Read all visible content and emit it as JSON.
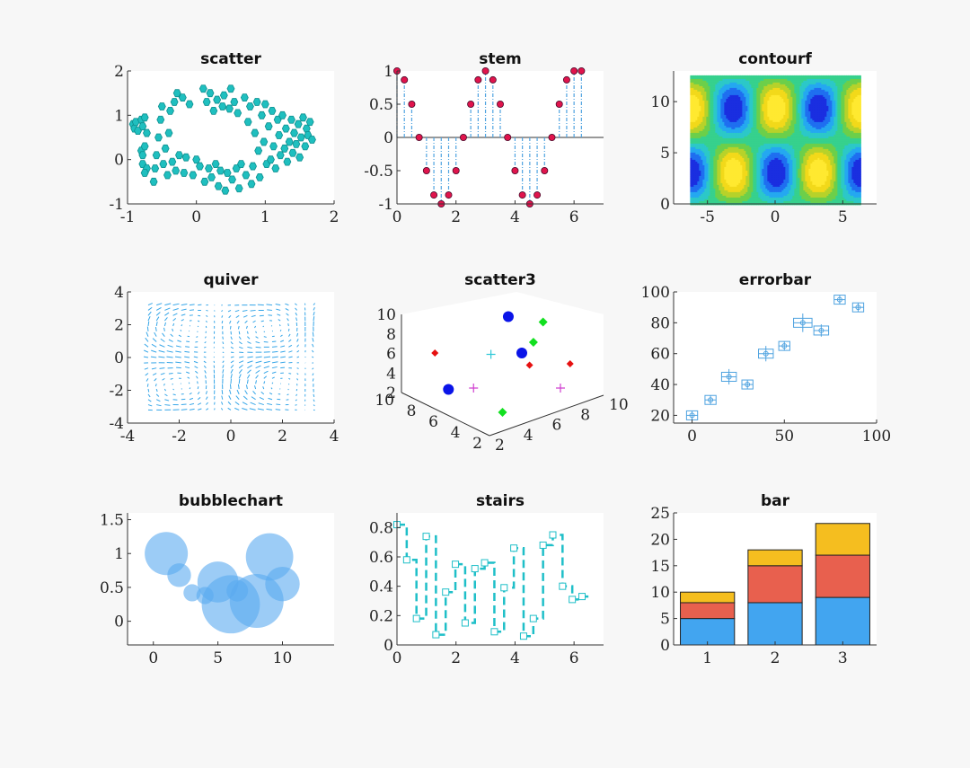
{
  "chart_data": [
    {
      "type": "scatter",
      "title": "scatter",
      "xlim": [
        -1,
        2
      ],
      "ylim": [
        -1,
        2
      ],
      "xticks": [
        "-1",
        "0",
        "1",
        "2"
      ],
      "yticks": [
        "-1",
        "0",
        "1",
        "2"
      ],
      "color": "#1fbfbf",
      "points": [
        [
          -0.92,
          0.8
        ],
        [
          -0.9,
          0.7
        ],
        [
          -0.88,
          0.85
        ],
        [
          -0.85,
          0.65
        ],
        [
          -0.8,
          0.9
        ],
        [
          -0.78,
          0.75
        ],
        [
          -0.75,
          0.95
        ],
        [
          -0.72,
          0.6
        ],
        [
          -0.8,
          0.2
        ],
        [
          -0.78,
          0.1
        ],
        [
          -0.75,
          0.3
        ],
        [
          -0.78,
          -0.1
        ],
        [
          -0.72,
          -0.2
        ],
        [
          -0.75,
          -0.3
        ],
        [
          -0.62,
          -0.5
        ],
        [
          -0.6,
          -0.2
        ],
        [
          -0.58,
          0.1
        ],
        [
          -0.55,
          0.5
        ],
        [
          -0.52,
          0.9
        ],
        [
          -0.5,
          1.2
        ],
        [
          -0.48,
          -0.1
        ],
        [
          -0.45,
          0.25
        ],
        [
          -0.42,
          -0.35
        ],
        [
          -0.4,
          0.6
        ],
        [
          -0.38,
          1.1
        ],
        [
          -0.35,
          -0.05
        ],
        [
          -0.32,
          1.3
        ],
        [
          -0.3,
          -0.25
        ],
        [
          -0.28,
          1.5
        ],
        [
          -0.25,
          0.1
        ],
        [
          -0.2,
          1.4
        ],
        [
          -0.18,
          -0.3
        ],
        [
          -0.15,
          0.05
        ],
        [
          -0.1,
          1.25
        ],
        [
          -0.05,
          -0.35
        ],
        [
          0,
          0.0
        ],
        [
          0.05,
          -0.15
        ],
        [
          0.1,
          1.6
        ],
        [
          0.12,
          -0.5
        ],
        [
          0.15,
          1.3
        ],
        [
          0.18,
          -0.2
        ],
        [
          0.2,
          1.5
        ],
        [
          0.22,
          -0.4
        ],
        [
          0.25,
          1.1
        ],
        [
          0.28,
          -0.1
        ],
        [
          0.3,
          1.35
        ],
        [
          0.32,
          -0.6
        ],
        [
          0.35,
          -0.25
        ],
        [
          0.38,
          1.2
        ],
        [
          0.4,
          1.45
        ],
        [
          0.42,
          -0.7
        ],
        [
          0.45,
          -0.3
        ],
        [
          0.48,
          1.15
        ],
        [
          0.5,
          1.6
        ],
        [
          0.52,
          -0.45
        ],
        [
          0.55,
          1.3
        ],
        [
          0.58,
          -0.2
        ],
        [
          0.6,
          1.05
        ],
        [
          0.62,
          -0.65
        ],
        [
          0.65,
          -0.1
        ],
        [
          0.7,
          1.4
        ],
        [
          0.72,
          -0.35
        ],
        [
          0.75,
          0.85
        ],
        [
          0.78,
          1.2
        ],
        [
          0.8,
          -0.55
        ],
        [
          0.82,
          -0.15
        ],
        [
          0.85,
          0.6
        ],
        [
          0.88,
          1.3
        ],
        [
          0.9,
          0.2
        ],
        [
          0.92,
          -0.4
        ],
        [
          0.95,
          1.0
        ],
        [
          0.98,
          0.4
        ],
        [
          1.0,
          1.25
        ],
        [
          1.02,
          -0.1
        ],
        [
          1.05,
          0.75
        ],
        [
          1.08,
          0.0
        ],
        [
          1.1,
          1.1
        ],
        [
          1.12,
          0.3
        ],
        [
          1.15,
          -0.2
        ],
        [
          1.18,
          0.9
        ],
        [
          1.2,
          0.55
        ],
        [
          1.22,
          0.1
        ],
        [
          1.25,
          1.0
        ],
        [
          1.28,
          0.25
        ],
        [
          1.3,
          0.7
        ],
        [
          1.32,
          -0.05
        ],
        [
          1.35,
          0.4
        ],
        [
          1.38,
          0.9
        ],
        [
          1.4,
          0.15
        ],
        [
          1.42,
          0.6
        ],
        [
          1.45,
          0.35
        ],
        [
          1.48,
          0.8
        ],
        [
          1.5,
          0.05
        ],
        [
          1.52,
          0.5
        ],
        [
          1.55,
          0.95
        ],
        [
          1.58,
          0.3
        ],
        [
          1.6,
          0.7
        ],
        [
          1.62,
          0.55
        ],
        [
          1.65,
          0.85
        ],
        [
          1.68,
          0.45
        ]
      ]
    },
    {
      "type": "stem",
      "title": "stem",
      "xlim": [
        0,
        7
      ],
      "ylim": [
        -1,
        1
      ],
      "xticks": [
        "0",
        "2",
        "4",
        "6"
      ],
      "yticks": [
        "-1",
        "-0.5",
        "0",
        "0.5",
        "1"
      ],
      "x": [
        0,
        0.25,
        0.5,
        0.75,
        1.0,
        1.25,
        1.5,
        1.75,
        2.0,
        2.25,
        2.5,
        2.75,
        3.0,
        3.25,
        3.5,
        3.75,
        4.0,
        4.25,
        4.5,
        4.75,
        5.0,
        5.25,
        5.5,
        5.75,
        6.0,
        6.25
      ],
      "y": [
        1,
        0.866,
        0.5,
        0,
        -0.5,
        -0.866,
        -1,
        -0.866,
        -0.5,
        0,
        0.5,
        0.866,
        1,
        0.866,
        0.5,
        0,
        -0.5,
        -0.866,
        -1,
        -0.866,
        -0.5,
        0,
        0.5,
        0.866,
        1,
        1
      ],
      "stem_color": "#4fa3e0",
      "marker_color": "#e0144c"
    },
    {
      "type": "heatmap",
      "title": "contourf",
      "xlim": [
        -7.5,
        7.5
      ],
      "ylim": [
        0,
        13
      ],
      "xticks": [
        "-5",
        "0",
        "5"
      ],
      "yticks": [
        "0",
        "5",
        "10"
      ],
      "data_extent": {
        "x": [
          -6.28,
          6.28
        ],
        "y": [
          0,
          12.57
        ]
      },
      "colors": [
        "#1a2ee0",
        "#1f6ff0",
        "#25a8f0",
        "#2cc8c8",
        "#36d18d",
        "#6ccf4a",
        "#b7d22a",
        "#f2d91a",
        "#ffe930"
      ]
    },
    {
      "type": "quiver",
      "title": "quiver",
      "xlim": [
        -4,
        4
      ],
      "ylim": [
        -4,
        4
      ],
      "xticks": [
        "-4",
        "-2",
        "0",
        "2",
        "4"
      ],
      "yticks": [
        "-4",
        "-2",
        "0",
        "2",
        "4"
      ],
      "color": "#36a6e8"
    },
    {
      "type": "scatter3",
      "title": "scatter3",
      "zticks": [
        "2",
        "4",
        "6",
        "8",
        "10"
      ],
      "xticks": [
        "2",
        "4",
        "6",
        "8",
        "10"
      ],
      "yticks": [
        "2",
        "4",
        "6",
        "8",
        "10"
      ],
      "markers": [
        {
          "u": 0.53,
          "v": 0.15,
          "shape": "circle",
          "color": "#0a14e8",
          "size": 6
        },
        {
          "u": 0.6,
          "v": 0.42,
          "shape": "circle",
          "color": "#0a14e8",
          "size": 6
        },
        {
          "u": 0.22,
          "v": 0.69,
          "shape": "circle",
          "color": "#0a14e8",
          "size": 6
        },
        {
          "u": 0.71,
          "v": 0.19,
          "shape": "diamond",
          "color": "#12e020",
          "size": 5
        },
        {
          "u": 0.66,
          "v": 0.34,
          "shape": "diamond",
          "color": "#12e020",
          "size": 5
        },
        {
          "u": 0.5,
          "v": 0.86,
          "shape": "diamond",
          "color": "#12e020",
          "size": 5
        },
        {
          "u": 0.15,
          "v": 0.42,
          "shape": "diamond",
          "color": "#e61010",
          "size": 4
        },
        {
          "u": 0.64,
          "v": 0.51,
          "shape": "diamond",
          "color": "#e61010",
          "size": 4
        },
        {
          "u": 0.85,
          "v": 0.5,
          "shape": "diamond",
          "color": "#e61010",
          "size": 4
        },
        {
          "u": 0.44,
          "v": 0.43,
          "shape": "plus",
          "color": "#30c8d8",
          "size": 5
        },
        {
          "u": 0.35,
          "v": 0.68,
          "shape": "plus",
          "color": "#d040d0",
          "size": 5
        },
        {
          "u": 0.8,
          "v": 0.68,
          "shape": "plus",
          "color": "#d040d0",
          "size": 5
        }
      ]
    },
    {
      "type": "errorbar",
      "title": "errorbar",
      "xlim": [
        -10,
        100
      ],
      "ylim": [
        15,
        100
      ],
      "xticks": [
        "0",
        "50",
        "100"
      ],
      "yticks": [
        "20",
        "40",
        "60",
        "80",
        "100"
      ],
      "color": "#4fa3e0",
      "x": [
        0,
        10,
        20,
        30,
        40,
        50,
        60,
        70,
        80,
        90
      ],
      "y": [
        20,
        30,
        45,
        40,
        60,
        65,
        80,
        75,
        95,
        90
      ],
      "xerr": [
        3,
        3,
        4,
        3,
        4,
        3,
        5,
        4,
        3,
        3
      ],
      "yerr": [
        3,
        3,
        5,
        3,
        5,
        3,
        6,
        4,
        3,
        3
      ]
    },
    {
      "type": "bubble",
      "title": "bubblechart",
      "xlim": [
        -2,
        14
      ],
      "ylim": [
        -0.35,
        1.6
      ],
      "xticks": [
        "0",
        "5",
        "10"
      ],
      "yticks": [
        "0",
        "0.5",
        "1",
        "1.5"
      ],
      "color": "#5aaaf0",
      "bubbles": [
        [
          1,
          1.0,
          1.0
        ],
        [
          2,
          0.68,
          0.55
        ],
        [
          3,
          0.42,
          0.4
        ],
        [
          4,
          0.38,
          0.4
        ],
        [
          5,
          0.58,
          0.95
        ],
        [
          6,
          0.25,
          1.35
        ],
        [
          8,
          0.3,
          1.25
        ],
        [
          9,
          0.95,
          1.1
        ],
        [
          10,
          0.55,
          0.8
        ],
        [
          6.5,
          0.45,
          0.5
        ]
      ]
    },
    {
      "type": "stairs",
      "title": "stairs",
      "xlim": [
        0,
        7
      ],
      "ylim": [
        0,
        0.9
      ],
      "xticks": [
        "0",
        "2",
        "4",
        "6"
      ],
      "yticks": [
        "0",
        "0.2",
        "0.4",
        "0.6",
        "0.8"
      ],
      "color": "#1fbfc8",
      "x": [
        0,
        0.33,
        0.66,
        0.99,
        1.32,
        1.65,
        1.98,
        2.31,
        2.64,
        2.97,
        3.3,
        3.63,
        3.96,
        4.29,
        4.62,
        4.95,
        5.28,
        5.61,
        5.94,
        6.27
      ],
      "y": [
        0.82,
        0.58,
        0.18,
        0.74,
        0.07,
        0.36,
        0.55,
        0.15,
        0.52,
        0.56,
        0.09,
        0.39,
        0.66,
        0.06,
        0.18,
        0.68,
        0.75,
        0.4,
        0.31,
        0.33
      ]
    },
    {
      "type": "bar",
      "title": "bar",
      "stacked": true,
      "xlim": [
        0.5,
        3.5
      ],
      "ylim": [
        0,
        25
      ],
      "categories": [
        "1",
        "2",
        "3"
      ],
      "yticks": [
        "0",
        "5",
        "10",
        "15",
        "20",
        "25"
      ],
      "series": [
        {
          "values": [
            5,
            8,
            9
          ],
          "color": "#42a5f0"
        },
        {
          "values": [
            3,
            7,
            8
          ],
          "color": "#e8604e"
        },
        {
          "values": [
            2,
            3,
            6
          ],
          "color": "#f5be1f"
        }
      ]
    }
  ]
}
